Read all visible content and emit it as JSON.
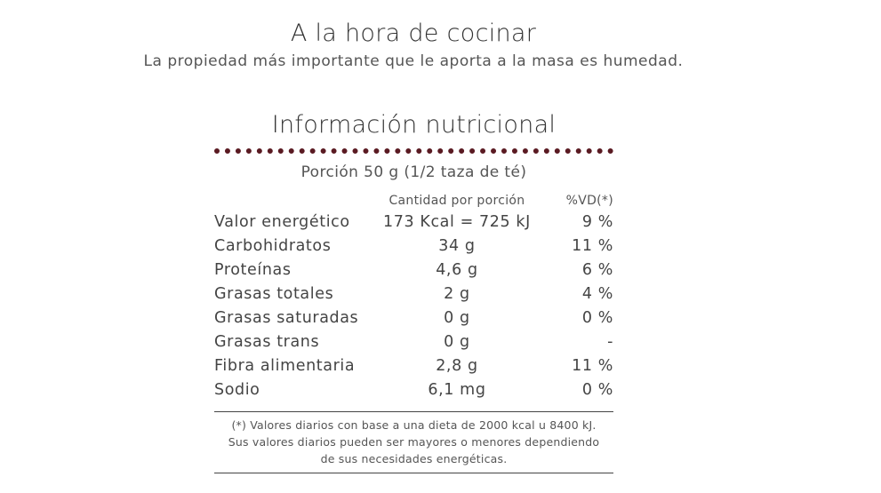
{
  "cooking": {
    "title": "A la hora de cocinar",
    "text": "La propiedad más importante que le aporta a la masa es humedad."
  },
  "nutrition": {
    "title": "Información nutricional",
    "portion": "Porción 50 g (1/2 taza de té)",
    "headers": {
      "amount": "Cantidad por porción",
      "vd": "%VD(*)"
    },
    "rows": [
      {
        "name": "Valor energético",
        "amount": "173 Kcal = 725 kJ",
        "vd": "9 %"
      },
      {
        "name": "Carbohidratos",
        "amount": "34 g",
        "vd": "11 %"
      },
      {
        "name": "Proteínas",
        "amount": "4,6 g",
        "vd": "6 %"
      },
      {
        "name": "Grasas totales",
        "amount": "2 g",
        "vd": "4 %"
      },
      {
        "name": "Grasas saturadas",
        "amount": "0 g",
        "vd": "0 %"
      },
      {
        "name": "Grasas trans",
        "amount": "0 g",
        "vd": "-"
      },
      {
        "name": "Fibra alimentaria",
        "amount": "2,8 g",
        "vd": "11 %"
      },
      {
        "name": "Sodio",
        "amount": "6,1 mg",
        "vd": "0 %"
      }
    ],
    "footnote": "(*) Valores diarios con base a una dieta de 2000 kcal u 8400 kJ. Sus valores diarios pueden ser mayores o menores dependiendo de sus necesidades energéticas."
  },
  "colors": {
    "accent": "#5a1a22",
    "text": "#444444"
  }
}
